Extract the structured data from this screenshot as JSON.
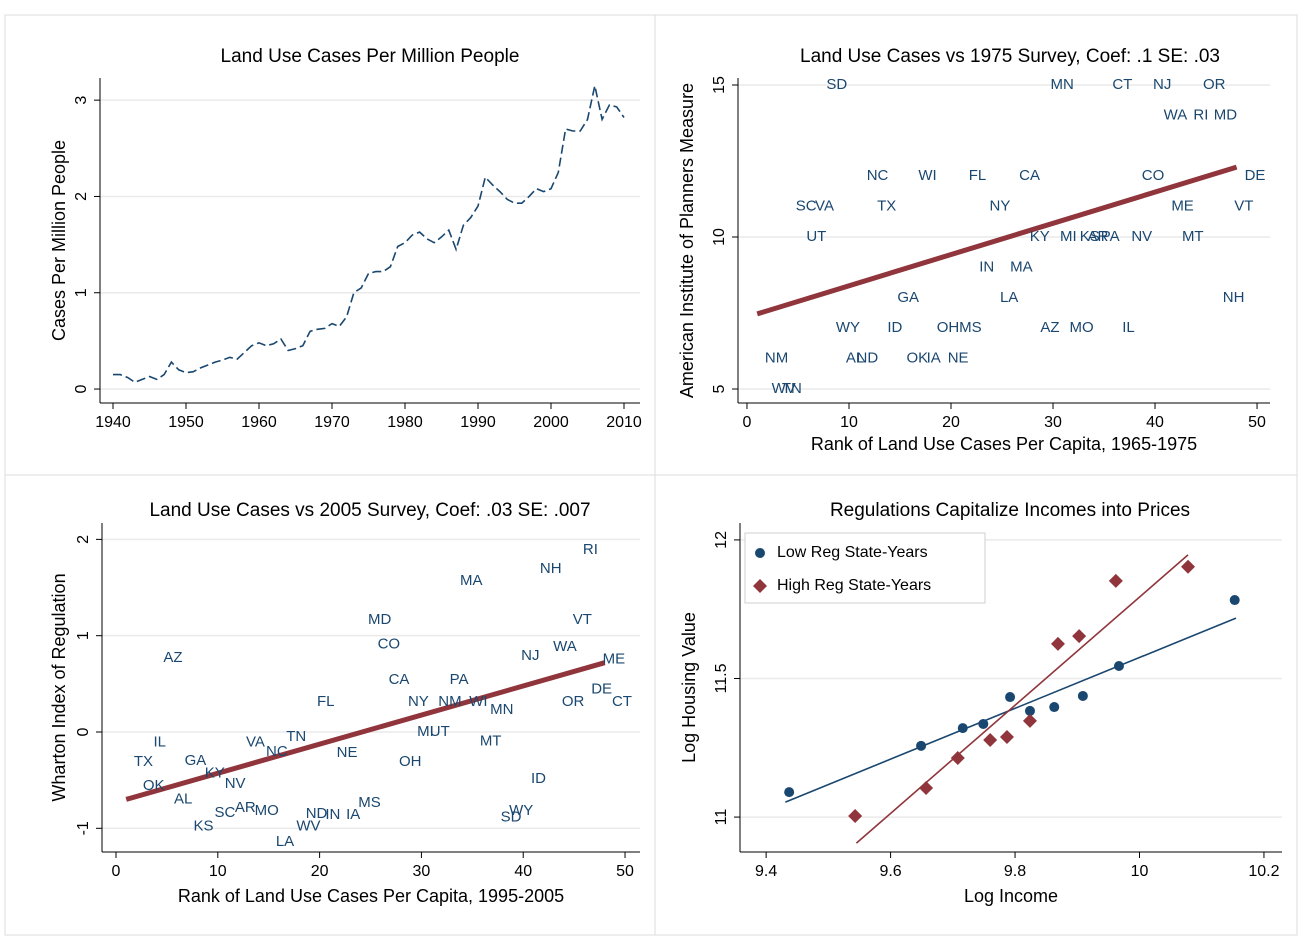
{
  "chart_data": [
    {
      "type": "line",
      "title": "Land Use Cases Per Million People",
      "y_label": "Cases Per Million People",
      "x": [
        1940,
        1941,
        1942,
        1943,
        1944,
        1945,
        1946,
        1947,
        1948,
        1949,
        1950,
        1951,
        1952,
        1953,
        1954,
        1955,
        1956,
        1957,
        1958,
        1959,
        1960,
        1961,
        1962,
        1963,
        1964,
        1965,
        1966,
        1967,
        1968,
        1969,
        1970,
        1971,
        1972,
        1973,
        1974,
        1975,
        1976,
        1977,
        1978,
        1979,
        1980,
        1981,
        1982,
        1983,
        1984,
        1985,
        1986,
        1987,
        1988,
        1989,
        1990,
        1991,
        1992,
        1993,
        1994,
        1995,
        1996,
        1997,
        1998,
        1999,
        2000,
        2001,
        2002,
        2003,
        2004,
        2005,
        2006,
        2007,
        2008,
        2009,
        2010
      ],
      "values": [
        0.15,
        0.15,
        0.12,
        0.07,
        0.1,
        0.13,
        0.1,
        0.15,
        0.28,
        0.2,
        0.17,
        0.18,
        0.22,
        0.25,
        0.28,
        0.3,
        0.33,
        0.31,
        0.38,
        0.45,
        0.48,
        0.45,
        0.47,
        0.52,
        0.4,
        0.42,
        0.45,
        0.6,
        0.62,
        0.63,
        0.68,
        0.65,
        0.75,
        1.0,
        1.05,
        1.2,
        1.22,
        1.22,
        1.27,
        1.48,
        1.52,
        1.6,
        1.63,
        1.56,
        1.52,
        1.58,
        1.65,
        1.45,
        1.7,
        1.78,
        1.9,
        2.2,
        2.12,
        2.05,
        1.97,
        1.93,
        1.93,
        2.0,
        2.08,
        2.05,
        2.08,
        2.25,
        2.7,
        2.68,
        2.68,
        2.8,
        3.15,
        2.8,
        2.95,
        2.93,
        2.82
      ],
      "color": "#1a476f",
      "dashed": true,
      "xlim": [
        1938.22,
        2012.19
      ],
      "xticks": [
        1940,
        1950,
        1960,
        1970,
        1980,
        1990,
        2000,
        2010
      ],
      "ylim": [
        -0.145,
        3.23
      ],
      "yticks": [
        0,
        1,
        2,
        3
      ],
      "grid": true
    },
    {
      "type": "labeled-scatter",
      "title": "Land Use Cases vs 1975 Survey, Coef: .1 SE: .03",
      "x_label": "Rank of Land Use Cases Per Capita, 1965-1975",
      "y_label": "American Institute of Planners Measure",
      "points": {
        "color": "#1a476f",
        "labels": [
          "SD",
          "MN",
          "CT",
          "NJ",
          "OR",
          "WA",
          "RI",
          "MD",
          "NC",
          "WI",
          "FL",
          "CA",
          "CO",
          "DE",
          "SC",
          "VA",
          "TX",
          "NY",
          "ME",
          "VT",
          "UT",
          "KY",
          "MI",
          "KS",
          "AR",
          "PA",
          "NV",
          "MT",
          "IN",
          "MA",
          "GA",
          "LA",
          "NH",
          "WY",
          "ID",
          "OH",
          "MS",
          "AZ",
          "MO",
          "IL",
          "NM",
          "AL",
          "ND",
          "OK",
          "IA",
          "NE",
          "WV",
          "TN"
        ],
        "x": [
          8.8,
          30.9,
          36.8,
          40.7,
          45.8,
          42,
          44.5,
          46.9,
          12.8,
          17.7,
          22.6,
          27.7,
          39.8,
          49.8,
          5.8,
          7.6,
          13.7,
          24.8,
          42.7,
          48.7,
          6.8,
          28.7,
          31.5,
          33.6,
          34.4,
          35.6,
          38.7,
          43.7,
          23.5,
          26.9,
          15.8,
          25.7,
          47.7,
          9.9,
          14.5,
          19.7,
          21.9,
          29.7,
          32.8,
          37.4,
          2.9,
          10.6,
          11.8,
          16.7,
          18.3,
          20.7,
          3.6,
          4.4
        ],
        "y": [
          15,
          15,
          15,
          15,
          15,
          14,
          14,
          14,
          12,
          12,
          12,
          12,
          12,
          12,
          11,
          11,
          11,
          11,
          11,
          11,
          10,
          10,
          10,
          10,
          10,
          10,
          10,
          10,
          9,
          9,
          8,
          8,
          8,
          7,
          7,
          7,
          7,
          7,
          7,
          7,
          6,
          6,
          6,
          6,
          6,
          6,
          5,
          5
        ]
      },
      "fit_line": {
        "color": "#90353b",
        "x": [
          1,
          48
        ],
        "y": [
          7.47,
          12.3
        ]
      },
      "xlim": [
        -0.88,
        51.27
      ],
      "xticks": [
        0,
        10,
        20,
        30,
        40,
        50
      ],
      "ylim": [
        4.54,
        15.23
      ],
      "yticks": [
        5,
        10,
        15
      ],
      "grid": true
    },
    {
      "type": "labeled-scatter",
      "title": "Land Use Cases vs 2005 Survey, Coef: .03 SE: .007",
      "x_label": "Rank of Land Use Cases Per Capita, 1995-2005",
      "y_label": "Wharton Index of Regulation",
      "points": {
        "color": "#1a476f",
        "labels": [
          "RI",
          "NH",
          "MA",
          "VT",
          "MD",
          "WA",
          "CO",
          "NJ",
          "AZ",
          "ME",
          "CA",
          "PA",
          "DE",
          "FL",
          "OR",
          "CT",
          "NY",
          "NM",
          "WI",
          "MN",
          "MI",
          "UT",
          "MT",
          "IL",
          "VA",
          "TN",
          "NC",
          "NE",
          "TX",
          "GA",
          "OH",
          "KY",
          "NV",
          "ID",
          "OK",
          "AL",
          "MS",
          "AR",
          "SC",
          "MO",
          "WY",
          "ND",
          "IN",
          "IA",
          "SD",
          "WV",
          "KS",
          "LA"
        ],
        "x": [
          46.6,
          42.7,
          34.9,
          45.8,
          25.9,
          44.1,
          26.8,
          40.7,
          5.6,
          48.9,
          27.8,
          33.7,
          47.7,
          20.6,
          44.9,
          49.7,
          29.7,
          32.8,
          35.6,
          37.9,
          30.4,
          31.8,
          36.8,
          4.3,
          13.7,
          17.7,
          15.8,
          22.7,
          2.7,
          7.8,
          28.9,
          9.7,
          11.7,
          41.5,
          3.7,
          6.6,
          24.9,
          12.7,
          10.7,
          14.8,
          39.8,
          19.7,
          21.3,
          23.3,
          38.8,
          18.9,
          8.6,
          16.6
        ],
        "y": [
          1.89,
          1.69,
          1.57,
          1.16,
          1.16,
          0.88,
          0.91,
          0.79,
          0.77,
          0.75,
          0.54,
          0.54,
          0.44,
          0.31,
          0.31,
          0.31,
          0.31,
          0.31,
          0.31,
          0.23,
          0.0,
          0.0,
          -0.1,
          -0.11,
          -0.11,
          -0.05,
          -0.21,
          -0.22,
          -0.31,
          -0.3,
          -0.31,
          -0.43,
          -0.54,
          -0.49,
          -0.56,
          -0.7,
          -0.74,
          -0.79,
          -0.84,
          -0.82,
          -0.82,
          -0.85,
          -0.86,
          -0.86,
          -0.89,
          -0.98,
          -0.98,
          -1.14
        ]
      },
      "fit_line": {
        "color": "#90353b",
        "x": [
          1,
          48
        ],
        "y": [
          -0.7,
          0.72
        ]
      },
      "xlim": [
        -1.375,
        51.47
      ],
      "xticks": [
        0,
        10,
        20,
        30,
        40,
        50
      ],
      "ylim": [
        -1.246,
        2.17
      ],
      "yticks": [
        -1,
        0,
        1,
        2
      ],
      "grid": true
    },
    {
      "type": "scatter",
      "title": "Regulations Capitalize Incomes into Prices",
      "x_label": "Log Income",
      "y_label": "Log Housing Value",
      "legend": "top-left",
      "series": [
        {
          "name": "Low Reg State-Years",
          "color": "#1a476f",
          "marker": "circle",
          "x": [
            9.437,
            9.649,
            9.716,
            9.749,
            9.792,
            9.824,
            9.863,
            9.909,
            9.967,
            10.153
          ],
          "values": [
            11.09,
            11.257,
            11.321,
            11.336,
            11.433,
            11.383,
            11.397,
            11.437,
            11.545,
            11.783
          ]
        },
        {
          "name": "High Reg State-Years",
          "color": "#90353b",
          "marker": "diamond",
          "x": [
            9.543,
            9.657,
            9.708,
            9.76,
            9.787,
            9.824,
            9.869,
            9.903,
            9.962,
            10.078
          ],
          "values": [
            11.004,
            11.105,
            11.213,
            11.278,
            11.289,
            11.347,
            11.625,
            11.653,
            11.852,
            11.903
          ]
        }
      ],
      "fit_lines": [
        {
          "color": "#1a476f",
          "x": [
            9.431,
            10.155
          ],
          "y": [
            11.054,
            11.718
          ]
        },
        {
          "color": "#90353b",
          "x": [
            9.545,
            10.078
          ],
          "y": [
            10.906,
            11.946
          ]
        }
      ],
      "xlim": [
        9.358,
        10.229
      ],
      "xticks": [
        9.4,
        9.6,
        9.8,
        10,
        10.2
      ],
      "ylim": [
        10.874,
        12.061
      ],
      "yticks": [
        11,
        11.5,
        12
      ],
      "grid": true
    }
  ]
}
